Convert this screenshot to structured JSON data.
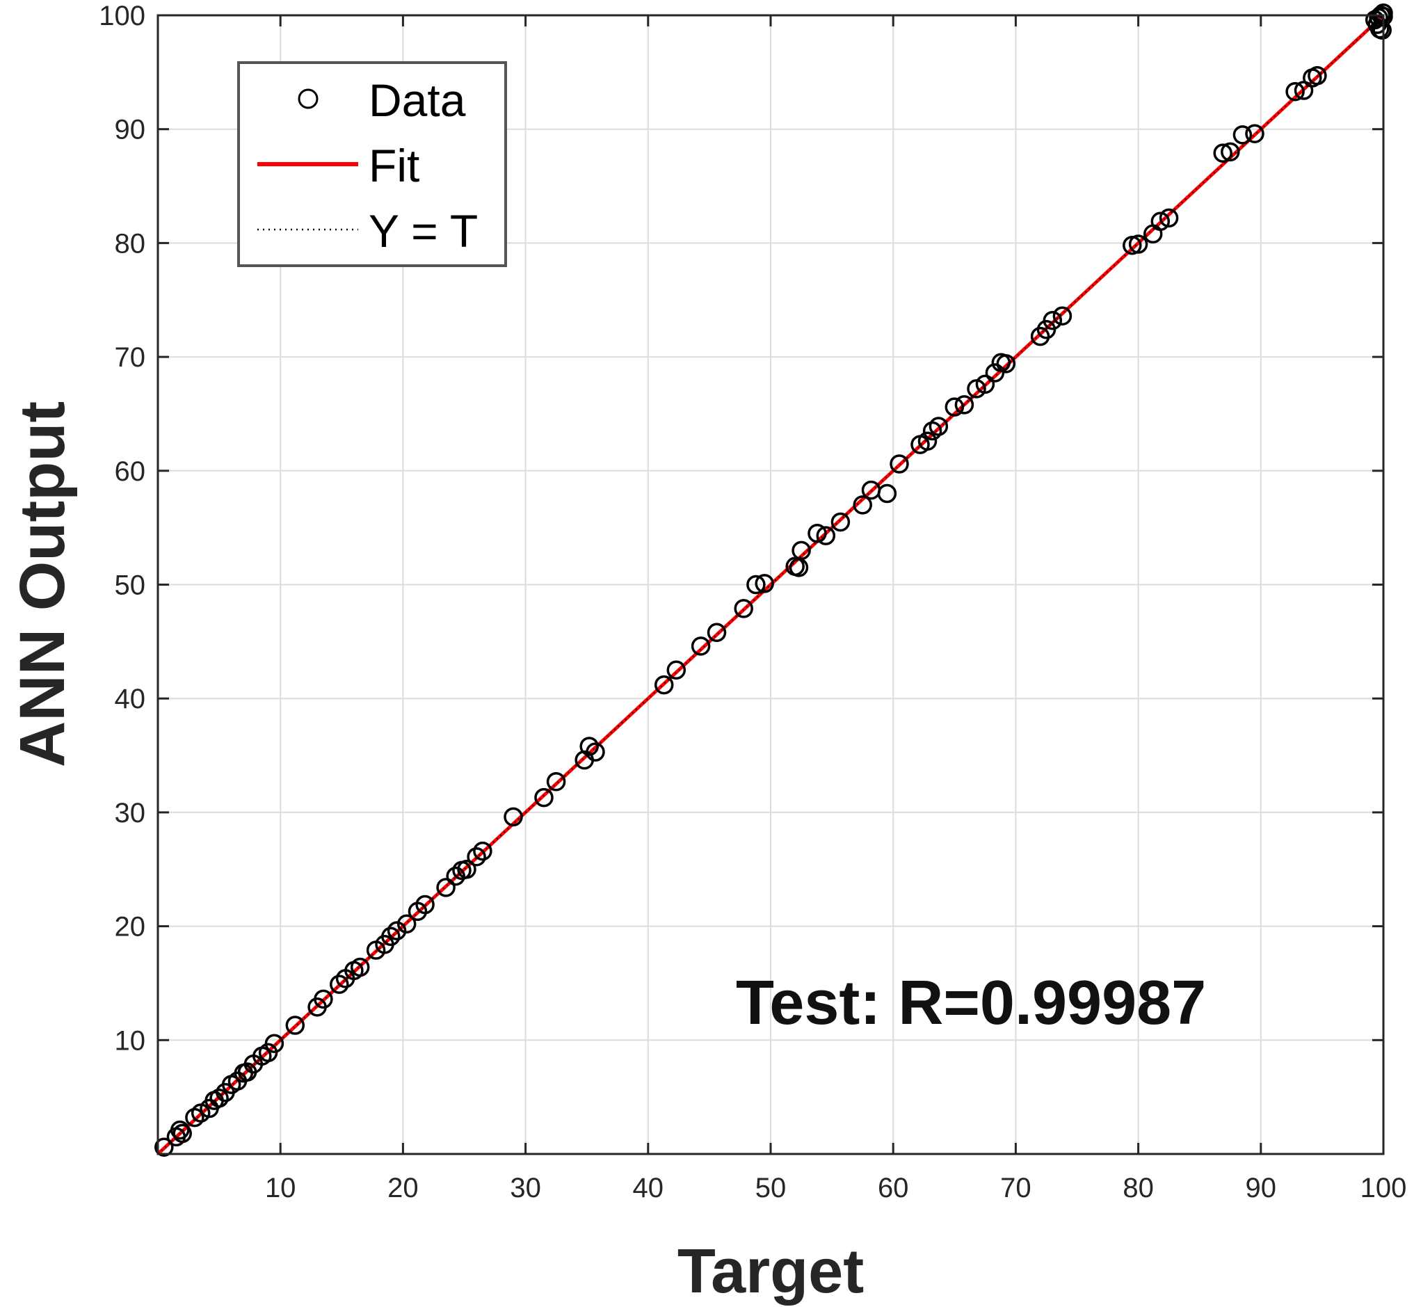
{
  "chart_data": {
    "type": "scatter",
    "title": "",
    "xlabel": "Target",
    "ylabel": "ANN Output",
    "xlim": [
      0,
      100
    ],
    "ylim": [
      0,
      100
    ],
    "xticks": [
      10,
      20,
      30,
      40,
      50,
      60,
      70,
      80,
      90,
      100
    ],
    "yticks": [
      10,
      20,
      30,
      40,
      50,
      60,
      70,
      80,
      90,
      100
    ],
    "grid": true,
    "legend_position": "top-left",
    "legend": [
      {
        "label": "Data",
        "style": "marker-circle",
        "color": "#000000"
      },
      {
        "label": "Fit",
        "style": "solid-line",
        "color": "#ff0000"
      },
      {
        "label": "Y = T",
        "style": "dotted-line",
        "color": "#000000"
      }
    ],
    "annotation": "Test: R=0.99987",
    "fit": {
      "slope": 1.0,
      "intercept": 0.0,
      "color": "#ff0000"
    },
    "identity": {
      "color": "#000000"
    },
    "series": [
      {
        "name": "Data",
        "marker": "circle",
        "color": "#000000",
        "points": [
          [
            0.5,
            0.6
          ],
          [
            1.5,
            1.5
          ],
          [
            1.8,
            2.1
          ],
          [
            2.0,
            1.8
          ],
          [
            3.0,
            3.2
          ],
          [
            3.5,
            3.6
          ],
          [
            4.2,
            4.0
          ],
          [
            4.6,
            4.7
          ],
          [
            5.0,
            4.9
          ],
          [
            5.5,
            5.4
          ],
          [
            6.0,
            6.1
          ],
          [
            6.5,
            6.4
          ],
          [
            7.0,
            7.1
          ],
          [
            7.3,
            7.2
          ],
          [
            7.8,
            7.9
          ],
          [
            8.5,
            8.6
          ],
          [
            9.0,
            8.9
          ],
          [
            9.5,
            9.7
          ],
          [
            11.2,
            11.3
          ],
          [
            13.0,
            12.9
          ],
          [
            13.5,
            13.6
          ],
          [
            14.8,
            14.9
          ],
          [
            15.3,
            15.4
          ],
          [
            16.0,
            16.1
          ],
          [
            16.5,
            16.4
          ],
          [
            17.8,
            17.9
          ],
          [
            18.5,
            18.4
          ],
          [
            19.0,
            19.1
          ],
          [
            19.5,
            19.6
          ],
          [
            20.3,
            20.2
          ],
          [
            21.2,
            21.3
          ],
          [
            21.8,
            21.9
          ],
          [
            23.5,
            23.4
          ],
          [
            24.3,
            24.4
          ],
          [
            24.8,
            24.9
          ],
          [
            25.2,
            25.0
          ],
          [
            26.0,
            26.1
          ],
          [
            26.5,
            26.6
          ],
          [
            29.0,
            29.6
          ],
          [
            31.5,
            31.3
          ],
          [
            32.5,
            32.7
          ],
          [
            34.8,
            34.6
          ],
          [
            35.2,
            35.8
          ],
          [
            35.7,
            35.3
          ],
          [
            41.3,
            41.2
          ],
          [
            42.3,
            42.5
          ],
          [
            44.3,
            44.6
          ],
          [
            45.6,
            45.8
          ],
          [
            47.8,
            47.9
          ],
          [
            48.8,
            50.0
          ],
          [
            49.5,
            50.1
          ],
          [
            52.0,
            51.6
          ],
          [
            52.3,
            51.5
          ],
          [
            52.5,
            53.0
          ],
          [
            53.8,
            54.5
          ],
          [
            54.5,
            54.3
          ],
          [
            55.7,
            55.5
          ],
          [
            57.5,
            57.0
          ],
          [
            58.2,
            58.3
          ],
          [
            59.5,
            58.0
          ],
          [
            60.5,
            60.6
          ],
          [
            62.2,
            62.3
          ],
          [
            62.8,
            62.6
          ],
          [
            63.2,
            63.5
          ],
          [
            63.7,
            63.9
          ],
          [
            65.0,
            65.6
          ],
          [
            65.8,
            65.8
          ],
          [
            66.8,
            67.2
          ],
          [
            67.5,
            67.6
          ],
          [
            68.3,
            68.6
          ],
          [
            68.8,
            69.5
          ],
          [
            69.2,
            69.4
          ],
          [
            72.0,
            71.8
          ],
          [
            72.5,
            72.4
          ],
          [
            73.0,
            73.2
          ],
          [
            73.8,
            73.6
          ],
          [
            79.5,
            79.8
          ],
          [
            80.0,
            79.9
          ],
          [
            81.2,
            80.8
          ],
          [
            81.8,
            81.9
          ],
          [
            82.5,
            82.2
          ],
          [
            86.9,
            87.9
          ],
          [
            87.5,
            88.0
          ],
          [
            88.5,
            89.5
          ],
          [
            89.5,
            89.6
          ],
          [
            92.8,
            93.3
          ],
          [
            93.5,
            93.4
          ],
          [
            94.2,
            94.5
          ],
          [
            94.6,
            94.7
          ],
          [
            99.3,
            99.6
          ],
          [
            99.6,
            99.8
          ],
          [
            99.8,
            100.0
          ],
          [
            100.0,
            99.9
          ],
          [
            99.7,
            98.8
          ],
          [
            99.9,
            98.7
          ],
          [
            99.5,
            99.2
          ],
          [
            100.0,
            100.2
          ]
        ]
      }
    ]
  }
}
